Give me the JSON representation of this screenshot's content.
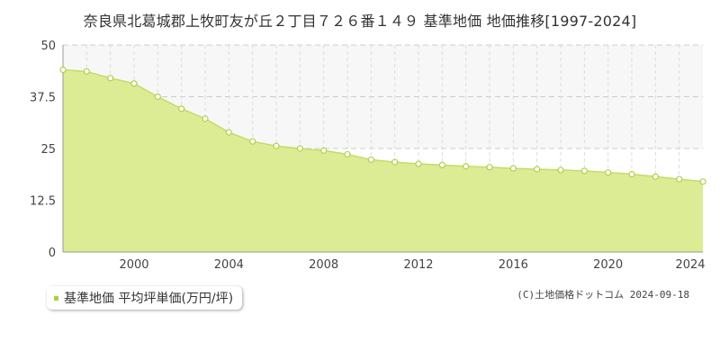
{
  "title": "奈良県北葛城郡上牧町友が丘２丁目７２６番１４９ 基準地価 地価推移[1997-2024]",
  "credit": "(C)土地価格ドットコム 2024-09-18",
  "colors": {
    "fill": "#dcec94",
    "line": "#c4dc66",
    "marker_stroke": "#b3cf4b",
    "marker_fill": "#ffffff",
    "band": "#f7f7f7",
    "grid": "#cccccc",
    "axis": "#999999",
    "legend_swatch": "#a8d43a"
  },
  "chart_data": {
    "type": "area",
    "title": "奈良県北葛城郡上牧町友が丘２丁目７２６番１４９ 基準地価 地価推移[1997-2024]",
    "xlabel": "",
    "ylabel": "",
    "xlim": [
      1997,
      2024
    ],
    "ylim": [
      0,
      50
    ],
    "y_ticks": [
      0,
      12.5,
      25,
      37.5,
      50
    ],
    "y_tick_labels": [
      "0",
      "12.5",
      "25",
      "37.5",
      "50"
    ],
    "x_ticks": [
      2000,
      2004,
      2008,
      2012,
      2016,
      2020,
      2024
    ],
    "x_tick_labels": [
      "2000",
      "2004",
      "2008",
      "2012",
      "2016",
      "2020",
      "2024"
    ],
    "grid": true,
    "legend_position": "bottom-left",
    "series": [
      {
        "name": "基準地価 平均坪単価(万円/坪)",
        "x": [
          1997,
          1998,
          1999,
          2000,
          2001,
          2002,
          2003,
          2004,
          2005,
          2006,
          2007,
          2008,
          2009,
          2010,
          2011,
          2012,
          2013,
          2014,
          2015,
          2016,
          2017,
          2018,
          2019,
          2020,
          2021,
          2022,
          2023,
          2024
        ],
        "values": [
          44.0,
          43.6,
          42.0,
          40.7,
          37.5,
          34.6,
          32.2,
          28.9,
          26.7,
          25.6,
          25.0,
          24.5,
          23.6,
          22.3,
          21.7,
          21.3,
          21.0,
          20.7,
          20.5,
          20.2,
          20.0,
          19.8,
          19.6,
          19.2,
          18.8,
          18.2,
          17.6,
          17.0
        ]
      }
    ]
  }
}
